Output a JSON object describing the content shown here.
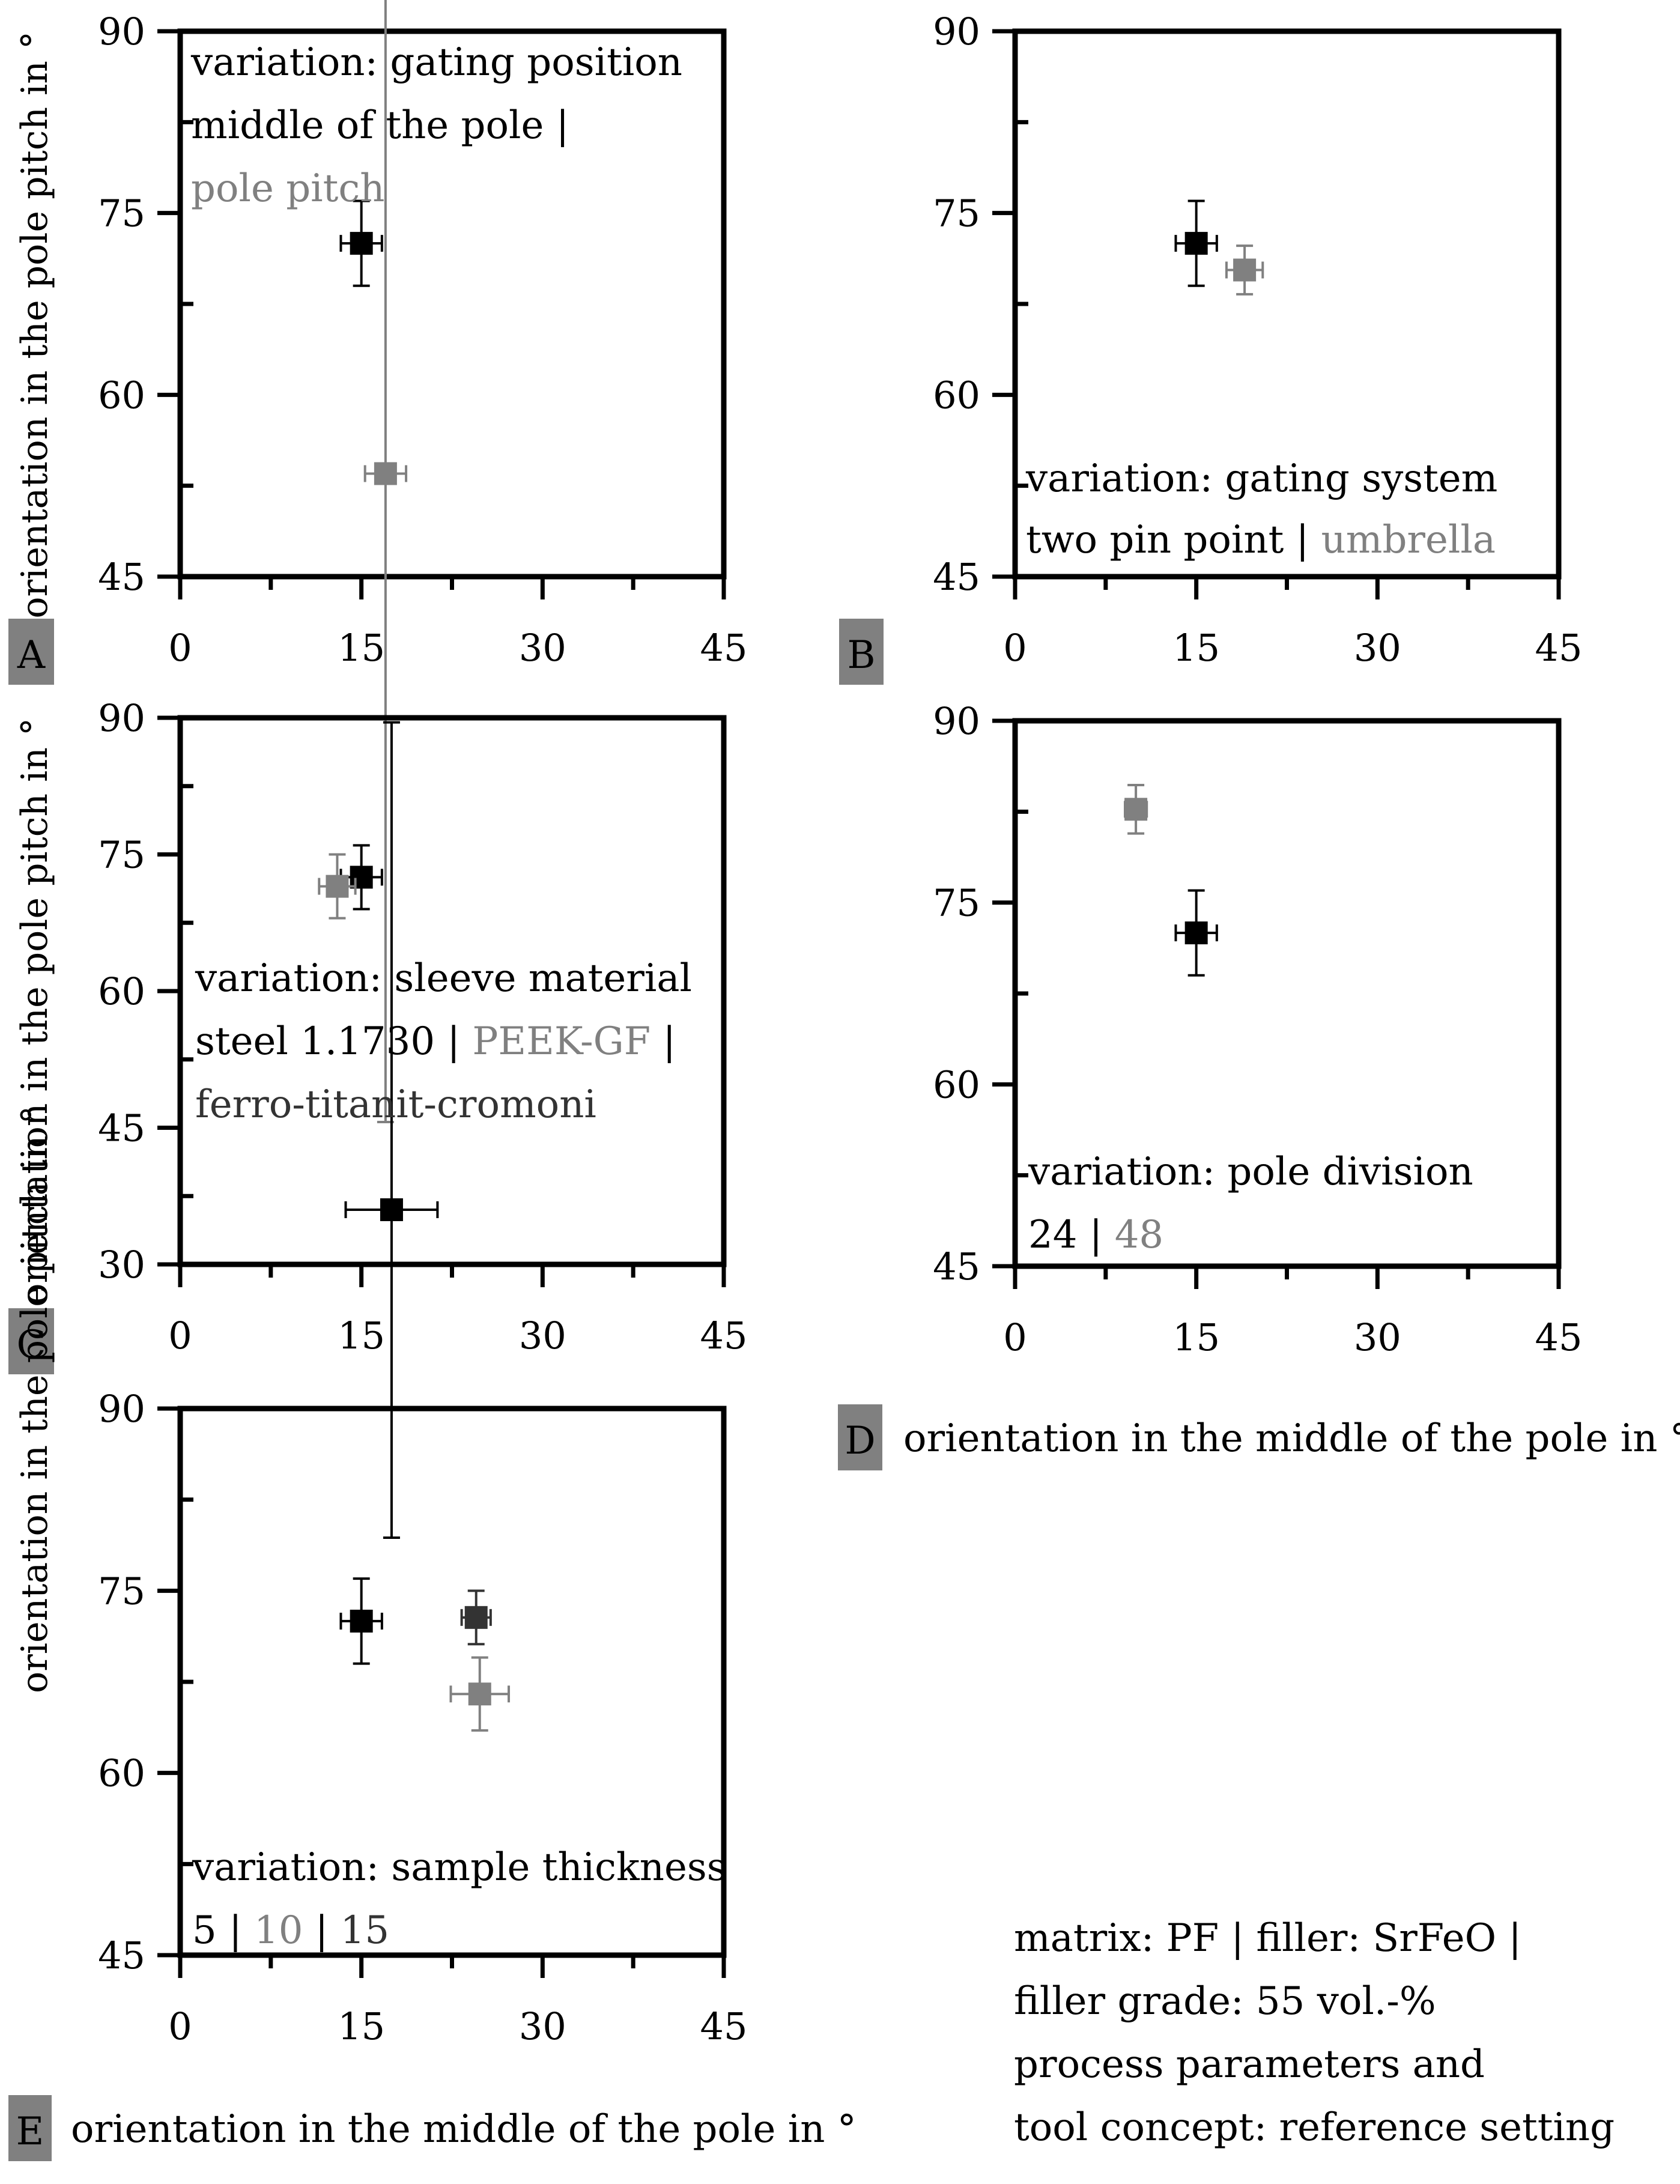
{
  "colors": {
    "black": "#000000",
    "dark": "#333333",
    "gray": "#808080",
    "badge": "#808080"
  },
  "axis_labels": {
    "ylabel": "orientation in the pole pitch in °",
    "xlabel": "orientation in the middle of the pole in °"
  },
  "info_text": [
    "matrix: PF | filler: SrFeO |",
    "filler grade: 55 vol.-%",
    "process parameters and",
    "tool concept: reference setting"
  ],
  "chart_data": [
    {
      "id": "A",
      "type": "scatter",
      "panel_label": "A",
      "xlim": [
        0,
        45
      ],
      "ylim": [
        45,
        90
      ],
      "xticks": [
        0,
        15,
        30,
        45
      ],
      "yticks": [
        45,
        60,
        75,
        90
      ],
      "annotation": [
        [
          {
            "text": "variation: gating position",
            "color": "black"
          }
        ],
        [
          {
            "text": "middle of the pole | ",
            "color": "black"
          }
        ],
        [
          {
            "text": "pole pitch",
            "color": "gray"
          }
        ]
      ],
      "series": [
        {
          "name": "middle of the pole",
          "color": "black",
          "x": 15,
          "y": 72.5,
          "xerr": 1.7,
          "yerr": 3.5
        },
        {
          "name": "pole pitch",
          "color": "gray",
          "x": 17,
          "y": 53.5,
          "xerr": 1.7,
          "yerr_low": 53.5,
          "yerr_high": 76
        }
      ]
    },
    {
      "id": "B",
      "type": "scatter",
      "panel_label": "B",
      "xlim": [
        0,
        45
      ],
      "ylim": [
        45,
        90
      ],
      "xticks": [
        0,
        15,
        30,
        45
      ],
      "yticks": [
        45,
        60,
        75,
        90
      ],
      "annotation": [
        [
          {
            "text": "variation: gating system",
            "color": "black"
          }
        ],
        [
          {
            "text": "two pin point | ",
            "color": "black"
          },
          {
            "text": "umbrella",
            "color": "gray"
          }
        ]
      ],
      "series": [
        {
          "name": "two pin point",
          "color": "black",
          "x": 15,
          "y": 72.5,
          "xerr": 1.7,
          "yerr": 3.5
        },
        {
          "name": "umbrella",
          "color": "gray",
          "x": 19,
          "y": 70.3,
          "xerr": 1.5,
          "yerr": 2
        }
      ]
    },
    {
      "id": "C",
      "type": "scatter",
      "panel_label": "C",
      "xlim": [
        0,
        45
      ],
      "ylim": [
        30,
        90
      ],
      "xticks": [
        0,
        15,
        30,
        45
      ],
      "yticks": [
        30,
        45,
        60,
        75,
        90
      ],
      "annotation": [
        [
          {
            "text": "variation: sleeve material",
            "color": "black"
          }
        ],
        [
          {
            "text": "steel 1.1730 | ",
            "color": "black"
          },
          {
            "text": "PEEK-GF",
            "color": "gray"
          },
          {
            "text": " |",
            "color": "black"
          }
        ],
        [
          {
            "text": "ferro-titanit-cromoni",
            "color": "dark"
          }
        ]
      ],
      "series": [
        {
          "name": "steel 1.1730",
          "color": "black",
          "x": 15,
          "y": 72.5,
          "xerr": 1.7,
          "yerr": 3.5
        },
        {
          "name": "PEEK-GF",
          "color": "gray",
          "x": 13,
          "y": 71.5,
          "xerr": 1.5,
          "yerr": 3.5
        },
        {
          "name": "ferro-titanit-cromoni",
          "color": "black",
          "x": 17.5,
          "y": 36,
          "xerr": 3.8,
          "yerr_low": 36,
          "yerr_high": 53.5
        }
      ]
    },
    {
      "id": "D",
      "type": "scatter",
      "panel_label": "D",
      "xlim": [
        0,
        45
      ],
      "ylim": [
        45,
        90
      ],
      "xticks": [
        0,
        15,
        30,
        45
      ],
      "yticks": [
        45,
        60,
        75,
        90
      ],
      "annotation": [
        [
          {
            "text": "variation: pole division",
            "color": "black"
          }
        ],
        [
          {
            "text": "24 | ",
            "color": "black"
          },
          {
            "text": "48",
            "color": "gray"
          }
        ]
      ],
      "series": [
        {
          "name": "24",
          "color": "black",
          "x": 15,
          "y": 72.5,
          "xerr": 1.7,
          "yerr": 3.5
        },
        {
          "name": "48",
          "color": "gray",
          "x": 10,
          "y": 82.7,
          "xerr": 0.9,
          "yerr": 2
        }
      ]
    },
    {
      "id": "E",
      "type": "scatter",
      "panel_label": "E",
      "xlim": [
        0,
        45
      ],
      "ylim": [
        45,
        90
      ],
      "xticks": [
        0,
        15,
        30,
        45
      ],
      "yticks": [
        45,
        60,
        75,
        90
      ],
      "annotation": [
        [
          {
            "text": "variation: sample thickness",
            "color": "black"
          }
        ],
        [
          {
            "text": "5 | ",
            "color": "black"
          },
          {
            "text": "10",
            "color": "gray"
          },
          {
            "text": " | ",
            "color": "black"
          },
          {
            "text": "15",
            "color": "dark"
          }
        ]
      ],
      "series": [
        {
          "name": "5",
          "color": "black",
          "x": 15,
          "y": 72.5,
          "xerr": 1.7,
          "yerr": 3.5
        },
        {
          "name": "15",
          "color": "dark",
          "x": 24.5,
          "y": 72.8,
          "xerr": 1.2,
          "yerr": 2.2
        },
        {
          "name": "10",
          "color": "gray",
          "x": 24.8,
          "y": 66.5,
          "xerr": 2.4,
          "yerr": 3
        }
      ]
    }
  ]
}
